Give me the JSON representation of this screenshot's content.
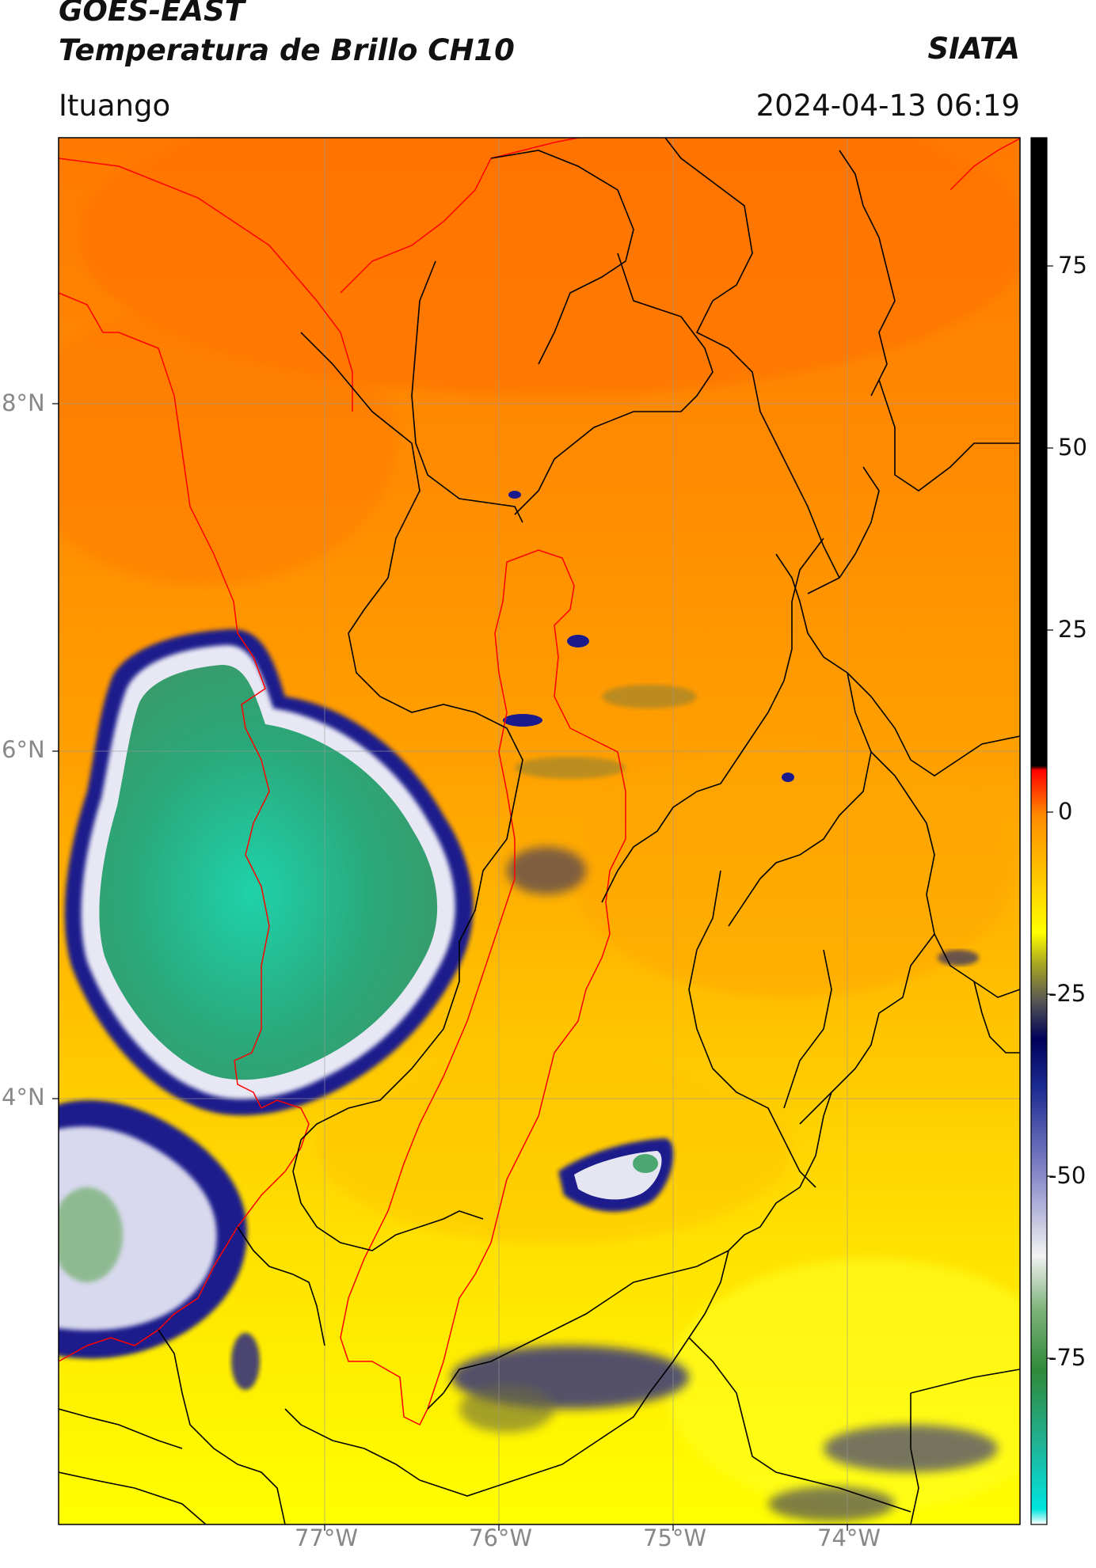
{
  "header": {
    "line1": "GOES-EAST",
    "line2": "Temperatura de Brillo CH10",
    "brand": "SIATA",
    "location": "Ituango",
    "datetime": "2024-04-13 06:19"
  },
  "map": {
    "lat_ticks": [
      "8°N",
      "6°N",
      "4°N"
    ],
    "lon_ticks": [
      "77°W",
      "76°W",
      "75°W",
      "74°W"
    ]
  },
  "colorbar": {
    "range": [
      -90,
      90
    ],
    "tick_labels": [
      "75",
      "50",
      "25",
      "0",
      "-25",
      "-50",
      "-75"
    ],
    "tick_values": [
      75,
      50,
      25,
      0,
      -25,
      -50,
      -75
    ],
    "stops": [
      {
        "v": -90,
        "c": "#ffffff"
      },
      {
        "v": -88,
        "c": "#00e5e0"
      },
      {
        "v": -80,
        "c": "#1fb59a"
      },
      {
        "v": -70,
        "c": "#2f8a3a"
      },
      {
        "v": -62,
        "c": "#7db37a"
      },
      {
        "v": -55,
        "c": "#f2f2f2"
      },
      {
        "v": -45,
        "c": "#8c8ccc"
      },
      {
        "v": -33,
        "c": "#1a2a90"
      },
      {
        "v": -27,
        "c": "#00005a"
      },
      {
        "v": -22,
        "c": "#555555"
      },
      {
        "v": -17,
        "c": "#aaaa22"
      },
      {
        "v": -13,
        "c": "#ffff00"
      },
      {
        "v": -5,
        "c": "#ffc000"
      },
      {
        "v": 2,
        "c": "#ff8c00"
      },
      {
        "v": 6,
        "c": "#ff3000"
      },
      {
        "v": 8,
        "c": "#ff0000"
      },
      {
        "v": 8.5,
        "c": "#000000"
      },
      {
        "v": 90,
        "c": "#000000"
      }
    ]
  },
  "colors": {
    "warm_orange": "#ff8a00",
    "mid_orange": "#ffb000",
    "yellow": "#ffff00",
    "cold_navy": "#1a1a8c",
    "cloud_green": "#2ea47a",
    "cloud_core": "#1fcfa8",
    "boundary_black": "#000000",
    "region_red": "#ff0000"
  }
}
